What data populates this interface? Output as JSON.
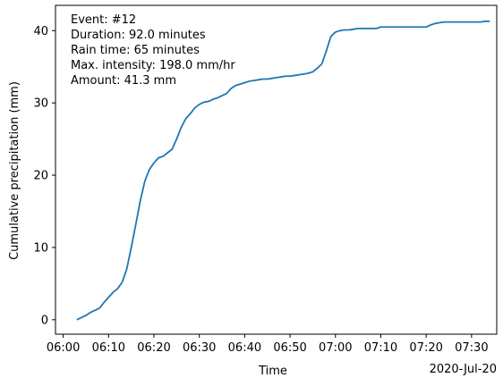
{
  "chart_data": {
    "type": "line",
    "xlabel": "Time",
    "ylabel": "Cumulative precipitation (mm)",
    "date_label": "2020-Jul-20",
    "x_tick_labels": [
      "06:00",
      "06:10",
      "06:20",
      "06:30",
      "06:40",
      "06:50",
      "07:00",
      "07:10",
      "07:20",
      "07:30"
    ],
    "y_tick_labels": [
      "0",
      "10",
      "20",
      "30",
      "40"
    ],
    "xlim": [
      "06:00",
      "07:35"
    ],
    "ylim": [
      -2,
      43.5
    ],
    "grid": false,
    "annotations": [
      "Event: #12",
      "Duration: 92.0 minutes",
      "Rain time: 65 minutes",
      "Max. intensity: 198.0 mm/hr",
      "Amount: 41.3 mm"
    ],
    "line_color": "#1f77b4",
    "series": [
      {
        "x": [
          "06:03",
          "06:04",
          "06:05",
          "06:06",
          "06:07",
          "06:08",
          "06:09",
          "06:10",
          "06:11",
          "06:12",
          "06:13",
          "06:14",
          "06:15",
          "06:16",
          "06:17",
          "06:18",
          "06:19",
          "06:20",
          "06:21",
          "06:22",
          "06:23",
          "06:24",
          "06:25",
          "06:26",
          "06:27",
          "06:28",
          "06:29",
          "06:30",
          "06:31",
          "06:32",
          "06:33",
          "06:34",
          "06:35",
          "06:36",
          "06:37",
          "06:38",
          "06:39",
          "06:40",
          "06:41",
          "06:42",
          "06:43",
          "06:44",
          "06:45",
          "06:46",
          "06:47",
          "06:48",
          "06:49",
          "06:50",
          "06:51",
          "06:52",
          "06:53",
          "06:54",
          "06:55",
          "06:56",
          "06:57",
          "06:58",
          "06:59",
          "07:00",
          "07:01",
          "07:02",
          "07:03",
          "07:04",
          "07:05",
          "07:06",
          "07:07",
          "07:08",
          "07:09",
          "07:10",
          "07:11",
          "07:12",
          "07:13",
          "07:14",
          "07:15",
          "07:16",
          "07:17",
          "07:18",
          "07:19",
          "07:20",
          "07:21",
          "07:22",
          "07:23",
          "07:24",
          "07:25",
          "07:26",
          "07:27",
          "07:28",
          "07:29",
          "07:30",
          "07:31",
          "07:32",
          "07:33",
          "07:34"
        ],
        "y": [
          0.0,
          0.3,
          0.6,
          1.0,
          1.3,
          1.6,
          2.4,
          3.1,
          3.8,
          4.3,
          5.2,
          7.0,
          10.0,
          13.2,
          16.5,
          19.2,
          20.8,
          21.7,
          22.4,
          22.6,
          23.1,
          23.6,
          25.0,
          26.6,
          27.8,
          28.5,
          29.3,
          29.8,
          30.1,
          30.2,
          30.5,
          30.7,
          31.0,
          31.3,
          32.0,
          32.4,
          32.6,
          32.8,
          33.0,
          33.1,
          33.2,
          33.3,
          33.3,
          33.4,
          33.5,
          33.6,
          33.7,
          33.7,
          33.8,
          33.9,
          34.0,
          34.1,
          34.3,
          34.8,
          35.4,
          37.2,
          39.2,
          39.8,
          40.0,
          40.1,
          40.1,
          40.2,
          40.3,
          40.3,
          40.3,
          40.3,
          40.3,
          40.5,
          40.5,
          40.5,
          40.5,
          40.5,
          40.5,
          40.5,
          40.5,
          40.5,
          40.5,
          40.5,
          40.8,
          41.0,
          41.1,
          41.2,
          41.2,
          41.2,
          41.2,
          41.2,
          41.2,
          41.2,
          41.2,
          41.2,
          41.3,
          41.3
        ]
      }
    ]
  }
}
